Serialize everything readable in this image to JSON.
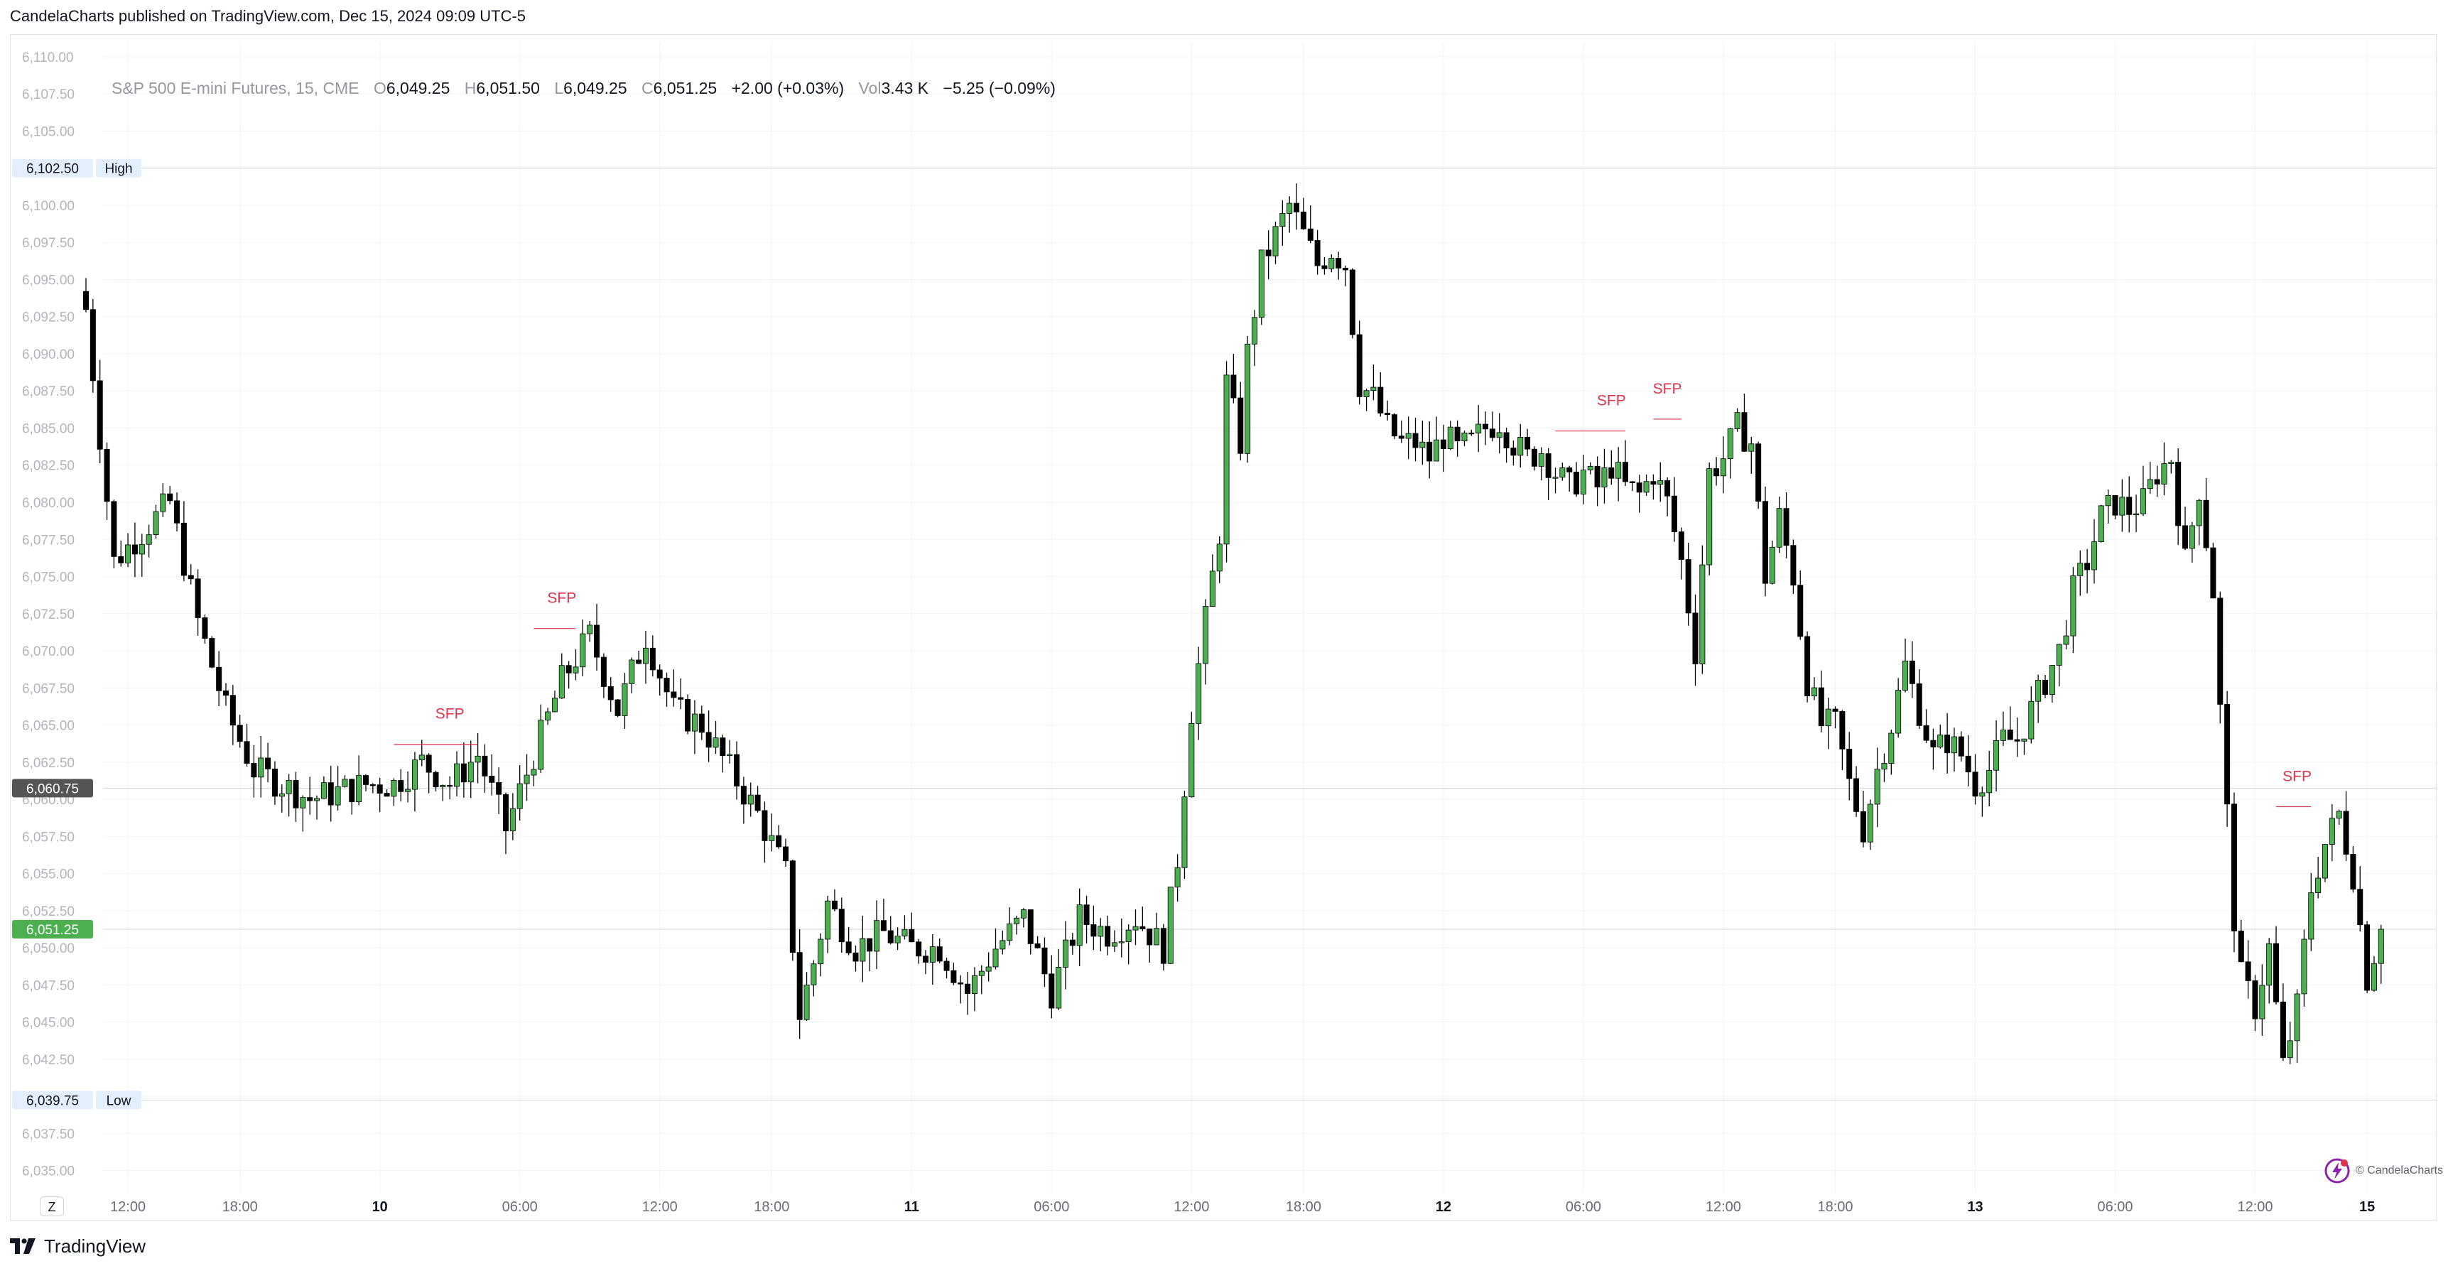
{
  "header": {
    "text": "CandelaCharts published on TradingView.com, Dec 15, 2024 09:09 UTC-5"
  },
  "legend": {
    "symbol": "S&P 500 E-mini Futures, 15, CME",
    "o_label": "O",
    "o_value": "6,049.25",
    "h_label": "H",
    "h_value": "6,051.50",
    "l_label": "L",
    "l_value": "6,049.25",
    "c_label": "C",
    "c_value": "6,051.25",
    "change": "+2.00 (+0.03%)",
    "vol_label": "Vol",
    "vol_value": "3.43 K",
    "vol_change": "−5.25 (−0.09%)"
  },
  "chart_data": {
    "type": "candlestick",
    "ylim": [
      6033.5,
      6111.0
    ],
    "y_ticks": [
      6035.0,
      6037.5,
      6040.0,
      6042.5,
      6045.0,
      6047.5,
      6050.0,
      6052.5,
      6055.0,
      6057.5,
      6060.0,
      6062.5,
      6065.0,
      6067.5,
      6070.0,
      6072.5,
      6075.0,
      6077.5,
      6080.0,
      6082.5,
      6085.0,
      6087.5,
      6090.0,
      6092.5,
      6095.0,
      6097.5,
      6100.0,
      6102.5,
      6105.0,
      6107.5,
      6110.0
    ],
    "y_tick_labels": [
      "6,035.00",
      "6,037.50",
      "6,040.00",
      "6,042.50",
      "6,045.00",
      "6,047.50",
      "6,050.00",
      "6,052.50",
      "6,055.00",
      "6,057.50",
      "6,060.00",
      "6,062.50",
      "6,065.00",
      "6,067.50",
      "6,070.00",
      "6,072.50",
      "6,075.00",
      "6,077.50",
      "6,080.00",
      "6,082.50",
      "6,085.00",
      "6,087.50",
      "6,090.00",
      "6,092.50",
      "6,095.00",
      "6,097.50",
      "6,100.00",
      "6,102.50",
      "6,105.00",
      "6,107.50",
      "6,110.00"
    ],
    "x_ticks": [
      {
        "i": 6,
        "label": "12:00",
        "bold": false
      },
      {
        "i": 22,
        "label": "18:00",
        "bold": false
      },
      {
        "i": 42,
        "label": "10",
        "bold": true
      },
      {
        "i": 62,
        "label": "06:00",
        "bold": false
      },
      {
        "i": 82,
        "label": "12:00",
        "bold": false
      },
      {
        "i": 98,
        "label": "18:00",
        "bold": false
      },
      {
        "i": 118,
        "label": "11",
        "bold": true
      },
      {
        "i": 138,
        "label": "06:00",
        "bold": false
      },
      {
        "i": 158,
        "label": "12:00",
        "bold": false
      },
      {
        "i": 174,
        "label": "18:00",
        "bold": false
      },
      {
        "i": 194,
        "label": "12",
        "bold": true
      },
      {
        "i": 214,
        "label": "06:00",
        "bold": false
      },
      {
        "i": 234,
        "label": "12:00",
        "bold": false
      },
      {
        "i": 250,
        "label": "18:00",
        "bold": false
      },
      {
        "i": 270,
        "label": "13",
        "bold": true
      },
      {
        "i": 290,
        "label": "06:00",
        "bold": false
      },
      {
        "i": 310,
        "label": "12:00",
        "bold": false
      },
      {
        "i": 326,
        "label": "15",
        "bold": true
      }
    ],
    "anchors": [
      [
        0,
        6093
      ],
      [
        4,
        6076
      ],
      [
        8,
        6078
      ],
      [
        12,
        6080
      ],
      [
        16,
        6072
      ],
      [
        20,
        6066
      ],
      [
        24,
        6062
      ],
      [
        28,
        6061
      ],
      [
        32,
        6060
      ],
      [
        36,
        6060.5
      ],
      [
        40,
        6061
      ],
      [
        44,
        6061
      ],
      [
        48,
        6062.5
      ],
      [
        52,
        6061
      ],
      [
        56,
        6063
      ],
      [
        60,
        6058
      ],
      [
        64,
        6063
      ],
      [
        68,
        6068
      ],
      [
        72,
        6071
      ],
      [
        76,
        6066
      ],
      [
        80,
        6071
      ],
      [
        84,
        6066
      ],
      [
        88,
        6065
      ],
      [
        92,
        6062
      ],
      [
        96,
        6059
      ],
      [
        100,
        6055
      ],
      [
        102,
        6045.5
      ],
      [
        104,
        6049
      ],
      [
        106,
        6053
      ],
      [
        110,
        6050
      ],
      [
        114,
        6051
      ],
      [
        118,
        6050
      ],
      [
        122,
        6050
      ],
      [
        126,
        6047
      ],
      [
        130,
        6050
      ],
      [
        134,
        6052
      ],
      [
        138,
        6047
      ],
      [
        142,
        6052
      ],
      [
        146,
        6051
      ],
      [
        150,
        6052
      ],
      [
        154,
        6050
      ],
      [
        156,
        6056
      ],
      [
        158,
        6066
      ],
      [
        160,
        6072
      ],
      [
        162,
        6078
      ],
      [
        163,
        6088
      ],
      [
        165,
        6084
      ],
      [
        166,
        6090
      ],
      [
        168,
        6096
      ],
      [
        170,
        6098
      ],
      [
        172,
        6100
      ],
      [
        174,
        6098
      ],
      [
        176,
        6096
      ],
      [
        178,
        6097
      ],
      [
        180,
        6096
      ],
      [
        182,
        6088
      ],
      [
        184,
        6087
      ],
      [
        186,
        6085
      ],
      [
        188,
        6084
      ],
      [
        190,
        6084
      ],
      [
        192,
        6083
      ],
      [
        194,
        6084.5
      ],
      [
        196,
        6083.5
      ],
      [
        198,
        6084
      ],
      [
        200,
        6085
      ],
      [
        202,
        6085.5
      ],
      [
        204,
        6084
      ],
      [
        206,
        6083
      ],
      [
        208,
        6083.5
      ],
      [
        210,
        6082
      ],
      [
        212,
        6081
      ],
      [
        214,
        6082
      ],
      [
        216,
        6081
      ],
      [
        218,
        6082.5
      ],
      [
        220,
        6081
      ],
      [
        222,
        6080.5
      ],
      [
        224,
        6082
      ],
      [
        226,
        6080
      ],
      [
        228,
        6076
      ],
      [
        230,
        6070
      ],
      [
        232,
        6082
      ],
      [
        234,
        6083
      ],
      [
        236,
        6085
      ],
      [
        238,
        6084
      ],
      [
        240,
        6075
      ],
      [
        242,
        6079
      ],
      [
        244,
        6075
      ],
      [
        246,
        6068
      ],
      [
        248,
        6065
      ],
      [
        250,
        6065
      ],
      [
        252,
        6061
      ],
      [
        254,
        6058
      ],
      [
        256,
        6062
      ],
      [
        258,
        6065
      ],
      [
        260,
        6069
      ],
      [
        262,
        6066
      ],
      [
        264,
        6063
      ],
      [
        266,
        6064
      ],
      [
        268,
        6063
      ],
      [
        270,
        6061
      ],
      [
        272,
        6062
      ],
      [
        274,
        6064
      ],
      [
        276,
        6064
      ],
      [
        278,
        6066
      ],
      [
        280,
        6068
      ],
      [
        282,
        6070
      ],
      [
        284,
        6074
      ],
      [
        286,
        6076
      ],
      [
        288,
        6079
      ],
      [
        290,
        6080
      ],
      [
        292,
        6079.5
      ],
      [
        294,
        6080
      ],
      [
        296,
        6082
      ],
      [
        298,
        6083
      ],
      [
        300,
        6076
      ],
      [
        302,
        6081
      ],
      [
        304,
        6074
      ],
      [
        305,
        6066
      ],
      [
        306,
        6059
      ],
      [
        307,
        6052
      ],
      [
        308,
        6048
      ],
      [
        310,
        6046
      ],
      [
        312,
        6050
      ],
      [
        314,
        6042
      ],
      [
        316,
        6046
      ],
      [
        318,
        6054
      ],
      [
        320,
        6057
      ],
      [
        322,
        6059
      ],
      [
        324,
        6055
      ],
      [
        326,
        6048
      ],
      [
        328,
        6051.25
      ]
    ],
    "price_labels": [
      {
        "value": 6102.5,
        "text": "6,102.50",
        "tag": "High",
        "style": "light"
      },
      {
        "value": 6060.75,
        "text": "6,060.75",
        "tag": "",
        "style": "dark"
      },
      {
        "value": 6051.25,
        "text": "6,051.25",
        "tag": "",
        "style": "green"
      },
      {
        "value": 6039.75,
        "text": "6,039.75",
        "tag": "Low",
        "style": "light"
      }
    ],
    "annotations": [
      {
        "text": "SFP",
        "i": 52,
        "price": 6063.7,
        "x1": 44,
        "x2": 56
      },
      {
        "text": "SFP",
        "i": 68,
        "price": 6071.5,
        "x1": 64,
        "x2": 70
      },
      {
        "text": "SFP",
        "i": 218,
        "price": 6084.8,
        "x1": 210,
        "x2": 220
      },
      {
        "text": "SFP",
        "i": 226,
        "price": 6085.6,
        "x1": 224,
        "x2": 228
      },
      {
        "text": "SFP",
        "i": 316,
        "price": 6059.5,
        "x1": 313,
        "x2": 318
      }
    ],
    "grid": true
  },
  "colors": {
    "up": "#4caf50",
    "down": "#000000",
    "annotation": "#e0344d",
    "grid": "#f0f3fa",
    "axis_text": "#b2b5be"
  },
  "z_button": {
    "label": "Z"
  },
  "footer": {
    "brand": "TradingView"
  },
  "watermark": {
    "text": "© CandelaCharts"
  }
}
